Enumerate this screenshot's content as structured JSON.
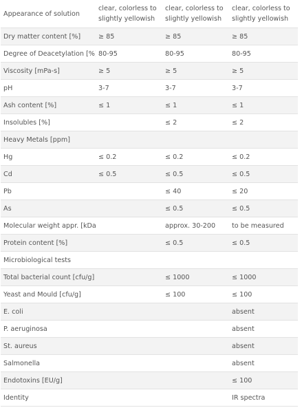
{
  "rows": [
    {
      "label": "Appearance of solution",
      "c1": "clear, colorless to slightly yellowish",
      "c2": "clear, colorless to slightly yellowish",
      "c3": "clear, colorless to slightly yellowish"
    },
    {
      "label": "Dry matter content [%]",
      "c1": "≥ 85",
      "c2": "≥ 85",
      "c3": "≥ 85"
    },
    {
      "label": "Degree of Deacetylation [%]",
      "c1": "80-95",
      "c2": "80-95",
      "c3": "80-95"
    },
    {
      "label": "Viscosity [mPa-s]",
      "c1": "≥ 5",
      "c2": "≥ 5",
      "c3": "≥ 5"
    },
    {
      "label": "pH",
      "c1": "3-7",
      "c2": "3-7",
      "c3": "3-7"
    },
    {
      "label": "Ash content [%]",
      "c1": "≤ 1",
      "c2": "≤ 1",
      "c3": "≤ 1"
    },
    {
      "label": "Insolubles [%]",
      "c1": "",
      "c2": "≤ 2",
      "c3": "≤ 2"
    },
    {
      "label": "Heavy Metals [ppm]",
      "c1": "",
      "c2": "",
      "c3": ""
    },
    {
      "label": "Hg",
      "c1": "≤ 0.2",
      "c2": "≤ 0.2",
      "c3": "≤ 0.2"
    },
    {
      "label": "Cd",
      "c1": "≤ 0.5",
      "c2": "≤ 0.5",
      "c3": "≤ 0.5"
    },
    {
      "label": "Pb",
      "c1": "",
      "c2": "≤ 40",
      "c3": "≤ 20"
    },
    {
      "label": "As",
      "c1": "",
      "c2": "≤ 0.5",
      "c3": "≤ 0.5"
    },
    {
      "label": "Molecular weight appr. [kDa]",
      "c1": "",
      "c2": "approx. 30-200",
      "c3": "to be measured"
    },
    {
      "label": "Protein content [%]",
      "c1": "",
      "c2": "≤ 0.5",
      "c3": "≤ 0.5"
    },
    {
      "label": "Microbiological tests",
      "c1": "",
      "c2": "",
      "c3": ""
    },
    {
      "label": "Total bacterial count [cfu/g]",
      "c1": "",
      "c2": "≤ 1000",
      "c3": "≤ 1000"
    },
    {
      "label": "Yeast and Mould [cfu/g]",
      "c1": "",
      "c2": "≤ 100",
      "c3": "≤ 100"
    },
    {
      "label": "E. coli",
      "c1": "",
      "c2": "",
      "c3": "absent"
    },
    {
      "label": "P. aeruginosa",
      "c1": "",
      "c2": "",
      "c3": "absent"
    },
    {
      "label": "St. aureus",
      "c1": "",
      "c2": "",
      "c3": "absent"
    },
    {
      "label": "Salmonella",
      "c1": "",
      "c2": "",
      "c3": "absent"
    },
    {
      "label": "Endotoxins [EU/g]",
      "c1": "",
      "c2": "",
      "c3": "≤ 100"
    },
    {
      "label": "Identity",
      "c1": "",
      "c2": "",
      "c3": "IR spectra"
    }
  ],
  "colors": {
    "row_alt": "#f3f3f3",
    "border": "#e2e2e2",
    "text": "#555555"
  }
}
